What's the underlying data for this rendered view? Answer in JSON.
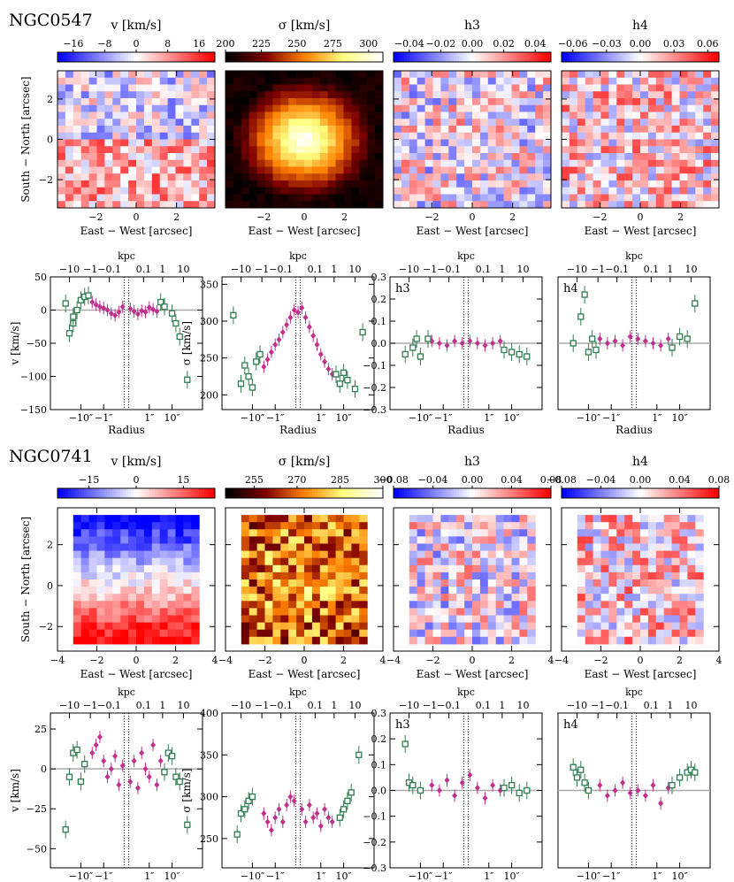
{
  "figure": {
    "x_label_map": "East − West [arcsec]",
    "y_label_map": "South − North [arcsec]",
    "x_label_profile": "Radius",
    "top_axis_label": "kpc",
    "radius_ticks": [
      "−10″",
      "−1″",
      "1″",
      "10″"
    ],
    "kpc_ticks": [
      "−10",
      "−1",
      "−0.1",
      "0.1",
      "1",
      "10"
    ],
    "colors": {
      "marker_inner": "#c0308c",
      "marker_outer": "#2e7d4f",
      "zero_line": "#aaaaaa"
    }
  },
  "chart_data": [
    {
      "galaxy": "NGC0547",
      "type": "heatmap",
      "maps": [
        {
          "id": "v",
          "title": "v [km/s]",
          "ticks": [
            "−16",
            "−8",
            "0",
            "8",
            "16"
          ],
          "range": [
            -20,
            20
          ],
          "cmap": "bwr"
        },
        {
          "id": "sigma",
          "title": "σ [km/s]",
          "ticks": [
            "200",
            "225",
            "250",
            "275",
            "300"
          ],
          "range": [
            200,
            310
          ],
          "cmap": "afmhot"
        },
        {
          "id": "h3",
          "title": "h3",
          "ticks": [
            "−0.04",
            "−0.02",
            "0.00",
            "0.02",
            "0.04"
          ],
          "range": [
            -0.05,
            0.05
          ],
          "cmap": "bwr"
        },
        {
          "id": "h4",
          "title": "h4",
          "ticks": [
            "−0.06",
            "−0.03",
            "0.00",
            "0.03",
            "0.06"
          ],
          "range": [
            -0.07,
            0.07
          ],
          "cmap": "bwr"
        }
      ],
      "map_x_ticks": [
        "−2",
        "0",
        "2"
      ],
      "map_y_ticks": [
        "−2",
        "0",
        "2"
      ],
      "profiles": [
        {
          "id": "v",
          "ylabel": "v [km/s]",
          "yticks": [
            "50",
            "0",
            "−50",
            "−100",
            "−150"
          ],
          "ylim": [
            -150,
            50
          ],
          "panel_label": "",
          "inner": {
            "x": [
              -0.9,
              -0.8,
              -0.7,
              -0.6,
              -0.5,
              -0.4,
              -0.3,
              -0.2,
              -0.1,
              0.1,
              0.2,
              0.3,
              0.4,
              0.5,
              0.6,
              0.7,
              0.8
            ],
            "y": [
              12,
              8,
              5,
              3,
              0,
              -5,
              -8,
              -3,
              5,
              2,
              -2,
              -6,
              -1,
              -3,
              4,
              1,
              -2
            ]
          },
          "outer": {
            "x": [
              -1.6,
              -1.5,
              -1.4,
              -1.4,
              -1.3,
              -1.2,
              -1.1,
              -1.0,
              0.9,
              1.0,
              1.2,
              1.3,
              1.4,
              1.6
            ],
            "y": [
              10,
              -35,
              -20,
              -10,
              0,
              15,
              20,
              22,
              12,
              5,
              -5,
              -20,
              -40,
              -105
            ]
          }
        },
        {
          "id": "sigma",
          "ylabel": "σ [km/s]",
          "yticks": [
            "200",
            "250",
            "300",
            "350"
          ],
          "ylim": [
            180,
            360
          ],
          "panel_label": "",
          "inner": {
            "x": [
              -0.9,
              -0.8,
              -0.7,
              -0.6,
              -0.5,
              -0.4,
              -0.3,
              -0.2,
              -0.1,
              0.0,
              0.1,
              0.2,
              0.3,
              0.4,
              0.5,
              0.6,
              0.7,
              0.8,
              0.9
            ],
            "y": [
              238,
              248,
              258,
              268,
              275,
              285,
              295,
              305,
              315,
              312,
              318,
              305,
              292,
              280,
              268,
              255,
              245,
              235,
              228
            ]
          },
          "outer": {
            "x": [
              -1.7,
              -1.5,
              -1.4,
              -1.3,
              -1.2,
              -1.1,
              -1.0,
              1.0,
              1.1,
              1.2,
              1.3,
              1.5,
              1.7
            ],
            "y": [
              308,
              215,
              240,
              225,
              210,
              245,
              255,
              228,
              215,
              230,
              220,
              208,
              285
            ]
          }
        },
        {
          "id": "h3",
          "ylabel": "",
          "yticks": [
            "0.3",
            "0.2",
            "0.1",
            "0.0",
            "−0.1",
            "−0.2",
            "−0.3"
          ],
          "ylim": [
            -0.3,
            0.3
          ],
          "panel_label": "h3",
          "inner": {
            "x": [
              -0.9,
              -0.7,
              -0.5,
              -0.3,
              -0.1,
              0.1,
              0.3,
              0.5,
              0.7,
              0.9
            ],
            "y": [
              0.01,
              0.0,
              -0.01,
              0.01,
              0.0,
              0.01,
              0.0,
              -0.01,
              0.0,
              0.01
            ]
          },
          "outer": {
            "x": [
              -1.6,
              -1.4,
              -1.3,
              -1.2,
              -1.0,
              1.0,
              1.2,
              1.4,
              1.6
            ],
            "y": [
              -0.05,
              -0.02,
              0.02,
              -0.06,
              0.02,
              -0.03,
              -0.04,
              -0.05,
              -0.06
            ]
          }
        },
        {
          "id": "h4",
          "ylabel": "",
          "yticks": [],
          "ylim": [
            -0.3,
            0.3
          ],
          "panel_label": "h4",
          "inner": {
            "x": [
              -0.9,
              -0.7,
              -0.5,
              -0.3,
              -0.1,
              0.1,
              0.3,
              0.5,
              0.7,
              0.9
            ],
            "y": [
              0.02,
              0.0,
              0.01,
              -0.01,
              0.03,
              0.02,
              0.01,
              0.0,
              -0.01,
              0.02
            ]
          },
          "outer": {
            "x": [
              -1.6,
              -1.4,
              -1.3,
              -1.2,
              -1.1,
              -1.0,
              1.0,
              1.2,
              1.4,
              1.6
            ],
            "y": [
              0.0,
              0.12,
              0.22,
              -0.04,
              0.02,
              -0.03,
              -0.02,
              0.03,
              0.02,
              0.18
            ]
          }
        }
      ]
    },
    {
      "galaxy": "NGC0741",
      "type": "heatmap",
      "maps": [
        {
          "id": "v",
          "title": "v [km/s]",
          "ticks": [
            "−15",
            "0",
            "15"
          ],
          "range": [
            -25,
            25
          ],
          "cmap": "bwr"
        },
        {
          "id": "sigma",
          "title": "σ [km/s]",
          "ticks": [
            "255",
            "270",
            "285",
            "300"
          ],
          "range": [
            245,
            300
          ],
          "cmap": "afmhot"
        },
        {
          "id": "h3",
          "title": "h3",
          "ticks": [
            "−0.08",
            "−0.04",
            "0.00",
            "0.04",
            "0.08"
          ],
          "range": [
            -0.08,
            0.08
          ],
          "cmap": "bwr"
        },
        {
          "id": "h4",
          "title": "h4",
          "ticks": [
            "−0.08",
            "−0.04",
            "0.00",
            "0.04",
            "0.08"
          ],
          "range": [
            -0.08,
            0.08
          ],
          "cmap": "bwr"
        }
      ],
      "map_x_ticks": [
        "−4",
        "−2",
        "0",
        "2",
        "4"
      ],
      "map_y_ticks": [
        "−2",
        "0",
        "2"
      ],
      "profiles": [
        {
          "id": "v",
          "ylabel": "v [km/s]",
          "yticks": [
            "25",
            "0",
            "−25",
            "−50"
          ],
          "ylim": [
            -62,
            35
          ],
          "panel_label": "",
          "inner": {
            "x": [
              -0.9,
              -0.8,
              -0.7,
              -0.6,
              -0.5,
              -0.4,
              -0.3,
              -0.2,
              -0.1,
              0.1,
              0.2,
              0.3,
              0.4,
              0.5,
              0.6,
              0.7,
              0.8,
              0.9
            ],
            "y": [
              10,
              15,
              20,
              5,
              -5,
              0,
              8,
              -10,
              2,
              -8,
              5,
              -12,
              10,
              0,
              -5,
              15,
              -10,
              5
            ]
          },
          "outer": {
            "x": [
              -1.6,
              -1.5,
              -1.4,
              -1.3,
              -1.2,
              -1.1,
              1.0,
              1.1,
              1.2,
              1.3,
              1.4,
              1.6
            ],
            "y": [
              -38,
              -5,
              10,
              12,
              -8,
              3,
              -2,
              10,
              8,
              -5,
              -8,
              -35
            ]
          }
        },
        {
          "id": "sigma",
          "ylabel": "σ [km/s]",
          "yticks": [
            "250",
            "300",
            "350",
            "400"
          ],
          "ylim": [
            215,
            400
          ],
          "panel_label": "",
          "inner": {
            "x": [
              -0.9,
              -0.8,
              -0.7,
              -0.6,
              -0.5,
              -0.4,
              -0.3,
              -0.2,
              -0.1,
              0.1,
              0.2,
              0.3,
              0.4,
              0.5,
              0.6,
              0.7,
              0.8,
              0.9
            ],
            "y": [
              280,
              270,
              260,
              275,
              285,
              270,
              290,
              300,
              295,
              285,
              270,
              290,
              275,
              280,
              265,
              285,
              275,
              270
            ]
          },
          "outer": {
            "x": [
              -1.6,
              -1.5,
              -1.4,
              -1.3,
              -1.2,
              1.1,
              1.2,
              1.3,
              1.4,
              1.6
            ],
            "y": [
              255,
              280,
              285,
              295,
              300,
              275,
              285,
              295,
              305,
              350
            ]
          }
        },
        {
          "id": "h3",
          "ylabel": "",
          "yticks": [
            "0.3",
            "0.2",
            "0.1",
            "0.0",
            "−0.1",
            "−0.2",
            "−0.3"
          ],
          "ylim": [
            -0.3,
            0.3
          ],
          "panel_label": "h3",
          "inner": {
            "x": [
              -0.9,
              -0.7,
              -0.5,
              -0.3,
              -0.1,
              0.1,
              0.3,
              0.5,
              0.7,
              0.9
            ],
            "y": [
              0.02,
              0.0,
              0.04,
              -0.02,
              0.03,
              0.06,
              0.01,
              -0.03,
              0.02,
              0.0
            ]
          },
          "outer": {
            "x": [
              -1.6,
              -1.5,
              -1.4,
              -1.2,
              1.0,
              1.2,
              1.4,
              1.6
            ],
            "y": [
              0.18,
              0.03,
              0.02,
              0.0,
              0.01,
              0.02,
              -0.01,
              0.0
            ]
          }
        },
        {
          "id": "h4",
          "ylabel": "",
          "yticks": [],
          "ylim": [
            -0.3,
            0.3
          ],
          "panel_label": "h4",
          "inner": {
            "x": [
              -0.9,
              -0.7,
              -0.5,
              -0.3,
              -0.1,
              0.1,
              0.3,
              0.5,
              0.7,
              0.9
            ],
            "y": [
              0.02,
              -0.02,
              0.0,
              0.03,
              -0.01,
              0.0,
              -0.02,
              0.02,
              -0.05,
              0.01
            ]
          },
          "outer": {
            "x": [
              -1.6,
              -1.5,
              -1.4,
              -1.3,
              -1.2,
              1.0,
              1.2,
              1.4,
              1.5,
              1.6
            ],
            "y": [
              0.09,
              0.05,
              0.08,
              0.03,
              0.0,
              0.02,
              0.05,
              0.07,
              0.08,
              0.07
            ]
          }
        }
      ]
    }
  ]
}
